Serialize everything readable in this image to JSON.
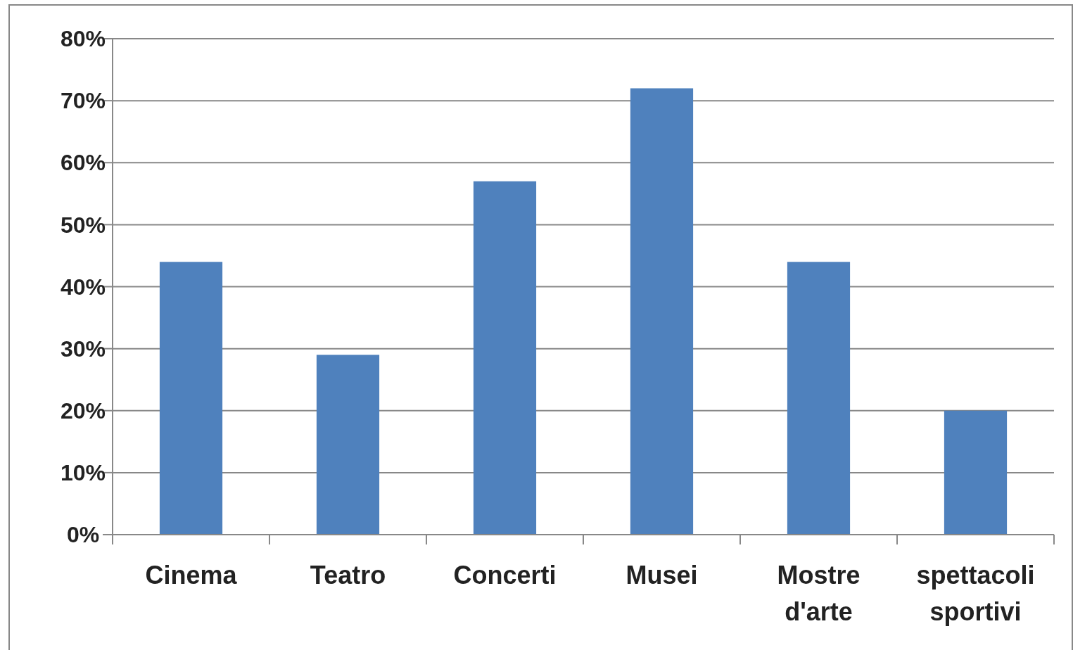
{
  "chart_data": {
    "type": "bar",
    "categories": [
      "Cinema",
      "Teatro",
      "Concerti",
      "Musei",
      "Mostre d'arte",
      "spettacoli sportivi"
    ],
    "values": [
      44,
      29,
      57,
      72,
      44,
      20
    ],
    "color": "#4f81bd",
    "ylim": [
      0,
      80
    ],
    "yticks": [
      {
        "value": 0,
        "label": "0%"
      },
      {
        "value": 10,
        "label": "10%"
      },
      {
        "value": 20,
        "label": "20%"
      },
      {
        "value": 30,
        "label": "30%"
      },
      {
        "value": 40,
        "label": "40%"
      },
      {
        "value": 50,
        "label": "50%"
      },
      {
        "value": 60,
        "label": "60%"
      },
      {
        "value": 70,
        "label": "70%"
      },
      {
        "value": 80,
        "label": "80%"
      }
    ],
    "grid": "y"
  }
}
